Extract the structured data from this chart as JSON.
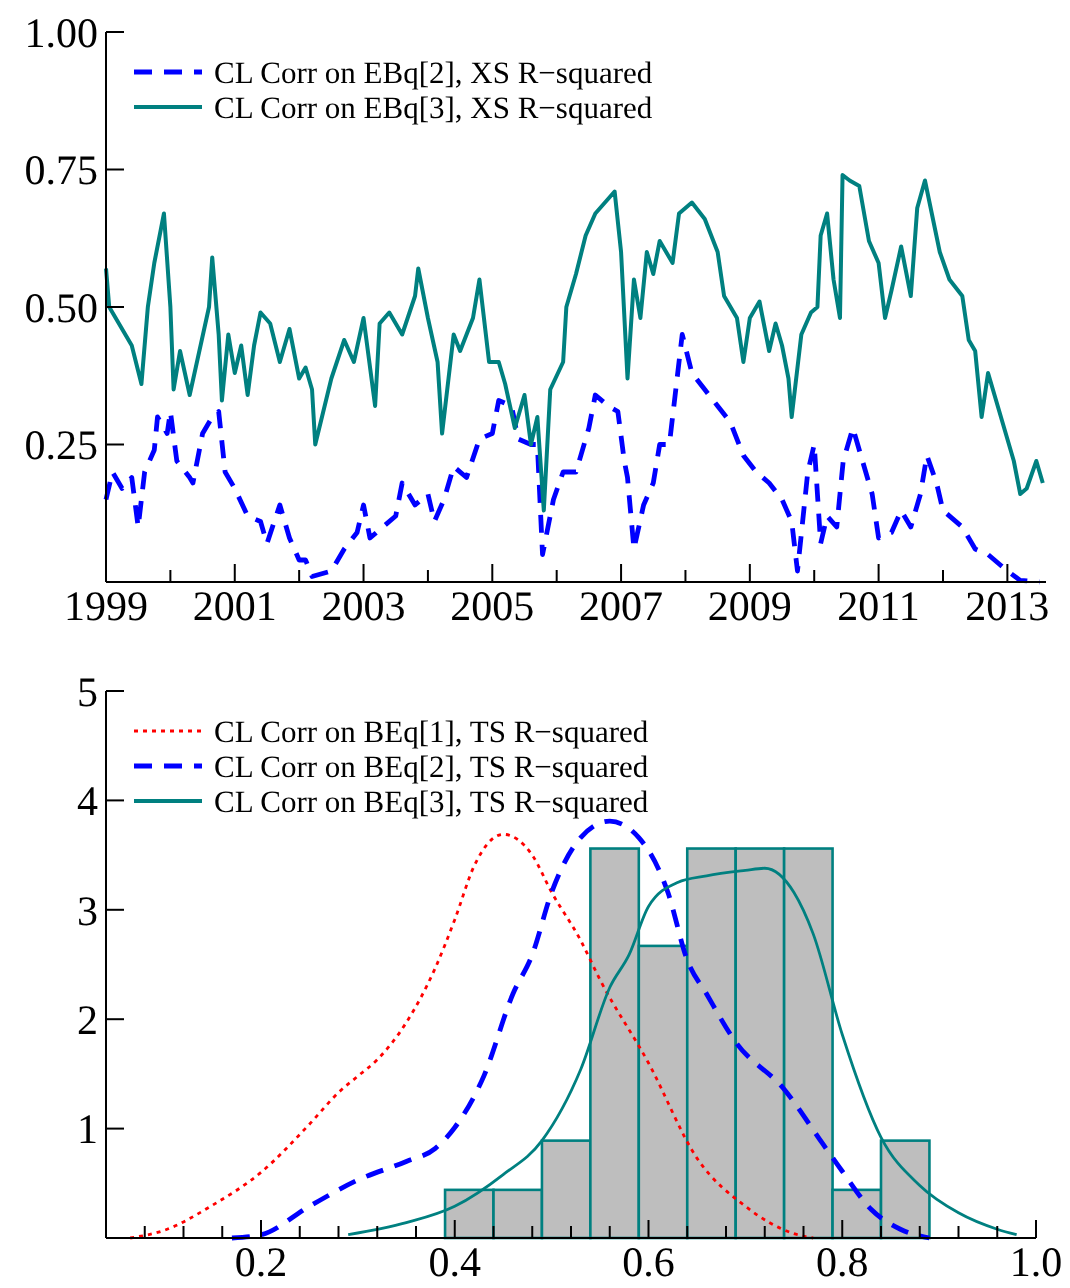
{
  "chart_data": [
    {
      "type": "line",
      "xlim": [
        1999,
        2013.6
      ],
      "ylim": [
        0,
        1
      ],
      "xticks": [
        1999,
        {
          "value": 2000,
          "label": null
        },
        2001,
        {
          "value": 2002,
          "label": null
        },
        2003,
        {
          "value": 2004,
          "label": null
        },
        2005,
        {
          "value": 2006,
          "label": null
        },
        2007,
        {
          "value": 2008,
          "label": null
        },
        2009,
        {
          "value": 2010,
          "label": null
        },
        2011,
        {
          "value": 2012,
          "label": null
        },
        2013
      ],
      "yticks": [
        0.25,
        {
          "value": 0.5,
          "label": "0.50"
        },
        0.75,
        {
          "value": 1,
          "label": "1.00"
        }
      ],
      "legend": "top left",
      "grid": false,
      "series": [
        {
          "name": "CL Corr on EBq[2], XS R−squared",
          "color": "#0000ff",
          "line_style": "dashed",
          "x": [
            1999.0,
            1999.1,
            1999.25,
            1999.4,
            1999.5,
            1999.6,
            1999.75,
            1999.8,
            1999.95,
            2000.0,
            2000.1,
            2000.3,
            2000.35,
            2000.5,
            2000.65,
            2000.75,
            2000.85,
            2001.0,
            2001.2,
            2001.4,
            2001.5,
            2001.7,
            2001.85,
            2002.0,
            2002.1,
            2002.2,
            2002.5,
            2002.7,
            2002.9,
            2003.0,
            2003.1,
            2003.3,
            2003.5,
            2003.6,
            2003.8,
            2004.0,
            2004.1,
            2004.25,
            2004.4,
            2004.6,
            2004.8,
            2005.0,
            2005.1,
            2005.3,
            2005.4,
            2005.6,
            2005.7,
            2005.78,
            2005.95,
            2006.1,
            2006.3,
            2006.5,
            2006.6,
            2006.8,
            2006.95,
            2007.05,
            2007.1,
            2007.2,
            2007.35,
            2007.5,
            2007.6,
            2007.75,
            2007.85,
            2007.95,
            2008.1,
            2008.3,
            2008.5,
            2008.7,
            2008.9,
            2009.1,
            2009.3,
            2009.5,
            2009.65,
            2009.74,
            2009.9,
            2010.0,
            2010.1,
            2010.2,
            2010.35,
            2010.45,
            2010.6,
            2010.75,
            2010.9,
            2011.0,
            2011.2,
            2011.35,
            2011.5,
            2011.65,
            2011.75,
            2011.9,
            2012.0,
            2012.3,
            2012.5,
            2012.7,
            2012.9,
            2013.0,
            2013.2,
            2013.5
          ],
          "values": [
            0.15,
            0.2,
            0.17,
            0.19,
            0.1,
            0.2,
            0.24,
            0.3,
            0.27,
            0.31,
            0.22,
            0.19,
            0.18,
            0.27,
            0.3,
            0.31,
            0.2,
            0.17,
            0.12,
            0.11,
            0.07,
            0.14,
            0.08,
            0.04,
            0.04,
            0.01,
            0.02,
            0.06,
            0.09,
            0.14,
            0.08,
            0.1,
            0.12,
            0.18,
            0.14,
            0.16,
            0.11,
            0.15,
            0.21,
            0.19,
            0.26,
            0.27,
            0.33,
            0.32,
            0.26,
            0.25,
            0.25,
            0.05,
            0.15,
            0.2,
            0.2,
            0.28,
            0.34,
            0.32,
            0.31,
            0.22,
            0.19,
            0.06,
            0.14,
            0.18,
            0.25,
            0.25,
            0.35,
            0.45,
            0.38,
            0.35,
            0.32,
            0.29,
            0.23,
            0.2,
            0.18,
            0.15,
            0.11,
            0.02,
            0.2,
            0.25,
            0.07,
            0.12,
            0.1,
            0.22,
            0.28,
            0.22,
            0.16,
            0.08,
            0.09,
            0.13,
            0.1,
            0.16,
            0.23,
            0.18,
            0.13,
            0.1,
            0.06,
            0.05,
            0.03,
            0.02,
            0.003,
            0.0
          ]
        },
        {
          "name": "CL Corr on EBq[3], XS R−squared",
          "color": "#008080",
          "line_style": "solid",
          "x": [
            1999.0,
            1999.05,
            1999.2,
            1999.4,
            1999.55,
            1999.65,
            1999.75,
            1999.9,
            2000.0,
            2000.05,
            2000.15,
            2000.3,
            2000.45,
            2000.6,
            2000.65,
            2000.75,
            2000.8,
            2000.9,
            2001.0,
            2001.1,
            2001.2,
            2001.3,
            2001.4,
            2001.55,
            2001.7,
            2001.85,
            2002.0,
            2002.1,
            2002.2,
            2002.25,
            2002.5,
            2002.7,
            2002.85,
            2003.0,
            2003.18,
            2003.25,
            2003.4,
            2003.6,
            2003.8,
            2003.85,
            2004.0,
            2004.15,
            2004.22,
            2004.4,
            2004.5,
            2004.7,
            2004.8,
            2004.95,
            2005.1,
            2005.2,
            2005.35,
            2005.5,
            2005.6,
            2005.7,
            2005.8,
            2005.9,
            2006.1,
            2006.15,
            2006.3,
            2006.45,
            2006.6,
            2006.9,
            2007.0,
            2007.1,
            2007.2,
            2007.3,
            2007.4,
            2007.5,
            2007.6,
            2007.8,
            2007.9,
            2008.1,
            2008.3,
            2008.5,
            2008.6,
            2008.8,
            2008.9,
            2009.0,
            2009.15,
            2009.3,
            2009.4,
            2009.5,
            2009.6,
            2009.65,
            2009.8,
            2009.95,
            2010.05,
            2010.1,
            2010.2,
            2010.3,
            2010.4,
            2010.44,
            2010.55,
            2010.7,
            2010.85,
            2011.0,
            2011.1,
            2011.2,
            2011.35,
            2011.5,
            2011.6,
            2011.72,
            2011.95,
            2012.1,
            2012.3,
            2012.4,
            2012.5,
            2012.6,
            2012.7,
            2012.8,
            2012.95,
            2013.1,
            2013.2,
            2013.3,
            2013.45,
            2013.55
          ],
          "values": [
            0.57,
            0.5,
            0.47,
            0.43,
            0.36,
            0.5,
            0.58,
            0.67,
            0.5,
            0.35,
            0.42,
            0.34,
            0.42,
            0.5,
            0.59,
            0.45,
            0.33,
            0.45,
            0.38,
            0.43,
            0.34,
            0.43,
            0.49,
            0.47,
            0.4,
            0.46,
            0.37,
            0.39,
            0.35,
            0.25,
            0.37,
            0.44,
            0.4,
            0.48,
            0.32,
            0.47,
            0.49,
            0.45,
            0.52,
            0.57,
            0.48,
            0.4,
            0.27,
            0.45,
            0.42,
            0.48,
            0.55,
            0.4,
            0.4,
            0.36,
            0.28,
            0.34,
            0.25,
            0.3,
            0.13,
            0.35,
            0.4,
            0.5,
            0.56,
            0.63,
            0.67,
            0.71,
            0.6,
            0.37,
            0.55,
            0.48,
            0.6,
            0.56,
            0.62,
            0.58,
            0.67,
            0.69,
            0.66,
            0.6,
            0.52,
            0.48,
            0.4,
            0.48,
            0.51,
            0.42,
            0.47,
            0.43,
            0.37,
            0.3,
            0.45,
            0.49,
            0.5,
            0.63,
            0.67,
            0.55,
            0.48,
            0.74,
            0.73,
            0.72,
            0.62,
            0.58,
            0.48,
            0.53,
            0.61,
            0.52,
            0.68,
            0.73,
            0.6,
            0.55,
            0.52,
            0.44,
            0.42,
            0.3,
            0.38,
            0.34,
            0.28,
            0.22,
            0.16,
            0.17,
            0.22,
            0.18
          ]
        }
      ]
    },
    {
      "type": "histogram",
      "xlim": [
        0.04,
        1.0
      ],
      "ylim": [
        0,
        5
      ],
      "xticks": [
        {
          "value": 0.04,
          "label": null
        },
        {
          "value": 0.08,
          "label": null
        },
        {
          "value": 0.12,
          "label": null
        },
        {
          "value": 0.16,
          "label": null
        },
        0.2,
        {
          "value": 0.24,
          "label": null
        },
        {
          "value": 0.28,
          "label": null
        },
        {
          "value": 0.32,
          "label": null
        },
        {
          "value": 0.36,
          "label": null
        },
        0.4,
        {
          "value": 0.44,
          "label": null
        },
        {
          "value": 0.48,
          "label": null
        },
        {
          "value": 0.52,
          "label": null
        },
        {
          "value": 0.56,
          "label": null
        },
        0.6,
        {
          "value": 0.64,
          "label": null
        },
        {
          "value": 0.68,
          "label": null
        },
        {
          "value": 0.72,
          "label": null
        },
        {
          "value": 0.76,
          "label": null
        },
        0.8,
        {
          "value": 0.84,
          "label": null
        },
        {
          "value": 0.88,
          "label": null
        },
        {
          "value": 0.92,
          "label": null
        },
        {
          "value": 0.96,
          "label": null
        },
        {
          "value": 1.0,
          "label": "1.0"
        }
      ],
      "yticks": [
        1,
        2,
        3,
        4,
        5
      ],
      "legend": "top left",
      "grid": false,
      "bins": [
        0.39,
        0.44,
        0.49,
        0.54,
        0.59,
        0.64,
        0.69,
        0.74,
        0.79,
        0.84,
        0.89
      ],
      "values": [
        0.44,
        0.44,
        0.89,
        3.56,
        2.67,
        3.56,
        3.56,
        3.56,
        0.44,
        0.89
      ],
      "color": "#bebebe",
      "series": [
        {
          "type": "line",
          "name": "CL Corr on BEq[1], TS R−squared",
          "color": "#ff0000",
          "line_style": "dotted",
          "x": [
            0.065,
            0.1,
            0.15,
            0.2,
            0.25,
            0.28,
            0.3,
            0.32,
            0.35,
            0.38,
            0.4,
            0.42,
            0.45,
            0.48,
            0.5,
            0.53,
            0.55,
            0.6,
            0.65,
            0.7,
            0.75,
            0.77
          ],
          "values": [
            0,
            0.07,
            0.3,
            0.6,
            1.04,
            1.33,
            1.48,
            1.63,
            1.97,
            2.47,
            2.91,
            3.4,
            3.69,
            3.5,
            3.16,
            2.72,
            2.36,
            1.6,
            0.73,
            0.29,
            0.04,
            0
          ]
        },
        {
          "type": "line",
          "name": "CL Corr on BEq[2], TS R−squared",
          "color": "#0000ff",
          "line_style": "dashed",
          "x": [
            0.17,
            0.2,
            0.25,
            0.3,
            0.35,
            0.38,
            0.4,
            0.43,
            0.46,
            0.48,
            0.5,
            0.53,
            0.56,
            0.59,
            0.62,
            0.64,
            0.66,
            0.69,
            0.74,
            0.78,
            0.8,
            0.83,
            0.86,
            0.89
          ],
          "values": [
            0,
            0.03,
            0.29,
            0.53,
            0.7,
            0.82,
            1.01,
            1.48,
            2.23,
            2.59,
            3.16,
            3.66,
            3.81,
            3.66,
            3.16,
            2.54,
            2.23,
            1.79,
            1.36,
            0.86,
            0.61,
            0.26,
            0.08,
            0
          ]
        },
        {
          "type": "line",
          "name": "CL Corr on BEq[3], TS R−squared",
          "color": "#008080",
          "line_style": "solid",
          "x": [
            0.29,
            0.35,
            0.4,
            0.45,
            0.49,
            0.53,
            0.56,
            0.58,
            0.6,
            0.63,
            0.66,
            0.7,
            0.72,
            0.75,
            0.77,
            0.8,
            0.84,
            0.88,
            0.92,
            0.96,
            0.98
          ],
          "values": [
            0.03,
            0.14,
            0.29,
            0.58,
            0.89,
            1.54,
            2.29,
            2.59,
            3.03,
            3.25,
            3.31,
            3.36,
            3.38,
            3.16,
            2.78,
            1.86,
            0.92,
            0.48,
            0.23,
            0.08,
            0.03
          ]
        }
      ]
    }
  ]
}
